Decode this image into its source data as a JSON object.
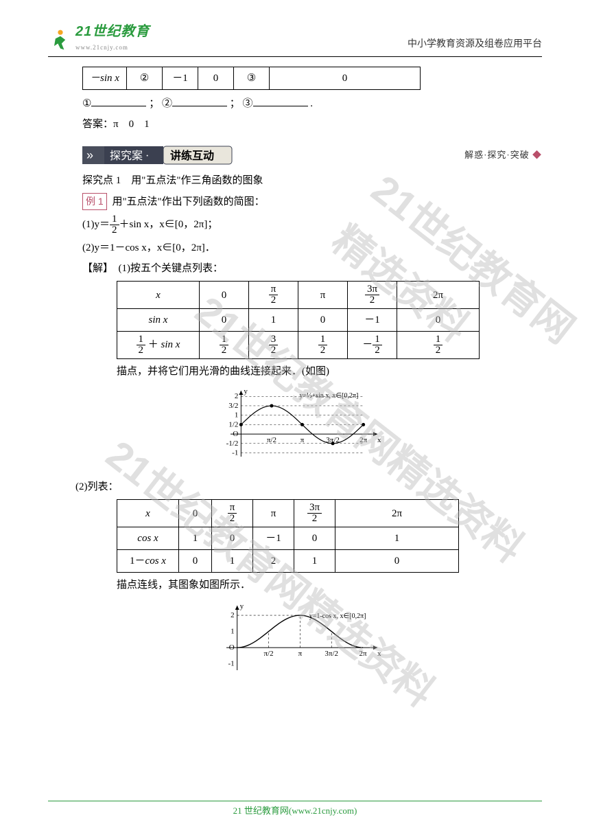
{
  "header": {
    "logo_main": "21世纪教育",
    "logo_under": "www.21cnjy.com",
    "right_text": "中小学教育资源及组卷应用平台"
  },
  "watermark_text": "21世纪教育网精选资料",
  "table1": {
    "rows": [
      [
        "－sin x",
        "②",
        "－1",
        "0",
        "③",
        "0"
      ]
    ]
  },
  "blanks_line": {
    "c1": "①",
    "c2": "②",
    "c3": "③",
    "sep1": "；",
    "sep2": "；",
    "tail": "."
  },
  "answers_label": "答案：",
  "answers_text": "π　0　1",
  "section_badge": {
    "chev": "»",
    "dark": "探究案 ·",
    "light": "讲练互动",
    "right": "解惑·探究·突破"
  },
  "point_title": "探究点 1　用\"五点法\"作三角函数的图象",
  "example_label": "例 1",
  "example_text": "用\"五点法\"作出下列函数的简图：",
  "q1_line": "(1)y＝",
  "q1_tail": "＋sin x，x∈[0，2π]；",
  "q2_line": "(2)y＝1－cos x，x∈[0，2π]．",
  "sol_label": "【解】",
  "sol1_text": "(1)按五个关键点列表：",
  "table2": {
    "columns": [
      "x",
      "0",
      "π/2",
      "π",
      "3π/2",
      "2π"
    ],
    "rows": [
      {
        "label": "sin x",
        "vals": [
          "0",
          "1",
          "0",
          "－1",
          "0"
        ]
      },
      {
        "label": "1/2＋sin x",
        "vals": [
          "1/2",
          "3/2",
          "1/2",
          "－1/2",
          "1/2"
        ]
      }
    ]
  },
  "plot1_caption": "描点，并将它们用光滑的曲线连接起来．(如图)",
  "chart1": {
    "legend": "y=1/2+sin x, x∈[0,2π]",
    "y_labels": [
      "2",
      "3/2",
      "1",
      "1/2",
      "O",
      "-1/2",
      "-1"
    ],
    "y_vals": [
      2,
      1.5,
      1,
      0.5,
      0,
      -0.5,
      -1
    ],
    "x_labels": [
      "π/2",
      "π",
      "3π/2",
      "2π"
    ],
    "x_vals": [
      1.5708,
      3.1416,
      4.7124,
      6.2832
    ],
    "points_x": [
      0,
      1.5708,
      3.1416,
      4.7124,
      6.2832
    ],
    "points_y": [
      0.5,
      1.5,
      0.5,
      -0.5,
      0.5
    ],
    "xlim": [
      -0.4,
      7.0
    ],
    "ylim": [
      -1.2,
      2.3
    ],
    "line_color": "#000",
    "marker_color": "#000",
    "grid_dash": "3,3"
  },
  "q2_list": "(2)列表：",
  "table3": {
    "columns": [
      "x",
      "0",
      "π/2",
      "π",
      "3π/2",
      "2π"
    ],
    "rows": [
      {
        "label": "cos x",
        "vals": [
          "1",
          "0",
          "－1",
          "0",
          "1"
        ]
      },
      {
        "label": "1－cos x",
        "vals": [
          "0",
          "1",
          "2",
          "1",
          "0"
        ]
      }
    ]
  },
  "plot2_caption": "描点连线，其图象如图所示．",
  "chart2": {
    "legend": "y=1-cos x, x∈[0,2π]",
    "y_labels": [
      "2",
      "1",
      "O",
      "-1"
    ],
    "y_vals": [
      2,
      1,
      0,
      -1
    ],
    "x_labels": [
      "π/2",
      "π",
      "3π/2",
      "2π"
    ],
    "x_vals": [
      1.5708,
      3.1416,
      4.7124,
      6.2832
    ],
    "points_x": [
      0,
      1.5708,
      3.1416,
      4.7124,
      6.2832
    ],
    "points_y": [
      0,
      1,
      2,
      1,
      0
    ],
    "xlim": [
      -0.4,
      7.0
    ],
    "ylim": [
      -1.4,
      2.6
    ],
    "line_color": "#000",
    "grid_dash": "3,3"
  },
  "footer": {
    "text": "21 世纪教育网(www.21cnjy.com)"
  }
}
